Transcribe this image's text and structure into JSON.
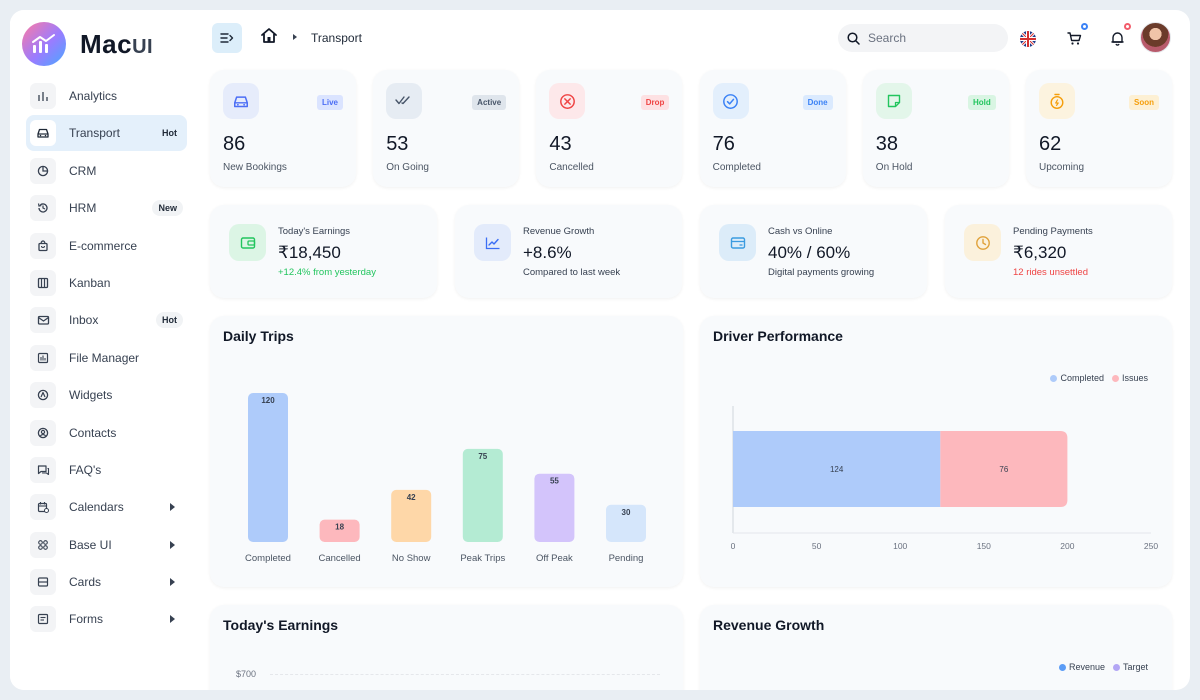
{
  "brand": {
    "name": "Mac",
    "suffix": "UI"
  },
  "sidebar": {
    "items": [
      {
        "label": "Analytics",
        "badge": "",
        "icon": "analytics-icon"
      },
      {
        "label": "Transport",
        "badge": "Hot",
        "icon": "car-icon"
      },
      {
        "label": "CRM",
        "badge": "",
        "icon": "pie-chart-icon"
      },
      {
        "label": "HRM",
        "badge": "New",
        "icon": "history-icon"
      },
      {
        "label": "E-commerce",
        "badge": "",
        "icon": "shopping-bag-icon"
      },
      {
        "label": "Kanban",
        "badge": "",
        "icon": "columns-icon"
      },
      {
        "label": "Inbox",
        "badge": "Hot",
        "icon": "mail-icon"
      },
      {
        "label": "File Manager",
        "badge": "",
        "icon": "file-chart-icon"
      },
      {
        "label": "Widgets",
        "badge": "",
        "icon": "widget-icon"
      },
      {
        "label": "Contacts",
        "badge": "",
        "icon": "user-circle-icon"
      },
      {
        "label": "FAQ's",
        "badge": "",
        "icon": "message-icon"
      },
      {
        "label": "Calendars",
        "badge": "",
        "icon": "calendar-icon"
      },
      {
        "label": "Base UI",
        "badge": "",
        "icon": "grid-icon"
      },
      {
        "label": "Cards",
        "badge": "",
        "icon": "card-icon"
      },
      {
        "label": "Forms",
        "badge": "",
        "icon": "form-icon"
      }
    ]
  },
  "header": {
    "breadcrumb_current": "Transport",
    "search_placeholder": "Search"
  },
  "stats": [
    {
      "value": "86",
      "label": "New Bookings",
      "badge": "Live",
      "icon": "car-icon",
      "color": "#4c6ef5",
      "bg": "#e6ecfb",
      "badge_bg": "#dbe4ff"
    },
    {
      "value": "53",
      "label": "On Going",
      "badge": "Active",
      "icon": "double-check-icon",
      "color": "#475569",
      "bg": "#e6ecf3",
      "badge_bg": "#dfe5ec"
    },
    {
      "value": "43",
      "label": "Cancelled",
      "badge": "Drop",
      "icon": "x-circle-icon",
      "color": "#ef4444",
      "bg": "#fde8ea",
      "badge_bg": "#fde1e3"
    },
    {
      "value": "76",
      "label": "Completed",
      "badge": "Done",
      "icon": "check-circle-icon",
      "color": "#3b82f6",
      "bg": "#e3effc",
      "badge_bg": "#dbeafe"
    },
    {
      "value": "38",
      "label": "On Hold",
      "badge": "Hold",
      "icon": "note-icon",
      "color": "#22c55e",
      "bg": "#e3f6ea",
      "badge_bg": "#d9f5e3"
    },
    {
      "value": "62",
      "label": "Upcoming",
      "badge": "Soon",
      "icon": "timer-icon",
      "color": "#f59e0b",
      "bg": "#fcf3df",
      "badge_bg": "#fdf0d4"
    }
  ],
  "finance": [
    {
      "title": "Today's Earnings",
      "value": "₹18,450",
      "sub": "+12.4% from yesterday",
      "icon": "wallet-icon",
      "color": "#22c55e",
      "bg": "#dcf5e5",
      "sub_color": "#22c55e"
    },
    {
      "title": "Revenue Growth",
      "value": "+8.6%",
      "sub": "Compared to last week",
      "icon": "trend-icon",
      "color": "#3b6ef5",
      "bg": "#e3ebfb",
      "sub_color": "#374151"
    },
    {
      "title": "Cash vs Online",
      "value": "40% / 60%",
      "sub": "Digital payments growing",
      "icon": "card-icon",
      "color": "#3b9be0",
      "bg": "#dcecf9",
      "sub_color": "#374151"
    },
    {
      "title": "Pending Payments",
      "value": "₹6,320",
      "sub": "12 rides unsettled",
      "icon": "clock-icon",
      "color": "#e0a23b",
      "bg": "#fbf1dc",
      "sub_color": "#ef4444"
    }
  ],
  "panels": {
    "daily_trips": "Daily Trips",
    "driver_performance": "Driver Performance",
    "todays_earnings": "Today's Earnings",
    "revenue_growth": "Revenue Growth"
  },
  "chart_data": [
    {
      "type": "bar",
      "title": "Daily Trips",
      "categories": [
        "Completed",
        "Cancelled",
        "No Show",
        "Peak Trips",
        "Off Peak",
        "Pending"
      ],
      "values": [
        120,
        18,
        42,
        75,
        55,
        30
      ],
      "colors": [
        "#aecbfa",
        "#fdb8bd",
        "#fed7a8",
        "#b4ebd3",
        "#d3c4fb",
        "#d5e6fb"
      ],
      "ylim": [
        0,
        120
      ]
    },
    {
      "type": "bar",
      "orientation": "horizontal",
      "title": "Driver Performance",
      "series": [
        {
          "name": "Completed",
          "values": [
            124
          ],
          "color": "#aecbfa"
        },
        {
          "name": "Issues",
          "values": [
            76
          ],
          "color": "#fdb8bd"
        }
      ],
      "xticks": [
        "0",
        "50",
        "100",
        "150",
        "200",
        "250"
      ],
      "xlim": [
        0,
        250
      ],
      "legend": "top-right"
    },
    {
      "type": "line",
      "title": "Today's Earnings",
      "yticks": [
        "$700"
      ]
    },
    {
      "type": "line",
      "title": "Revenue Growth",
      "series": [
        {
          "name": "Revenue",
          "color": "#5b9cf6"
        },
        {
          "name": "Target",
          "color": "#b3a6f5"
        }
      ],
      "legend": "top-right"
    }
  ]
}
